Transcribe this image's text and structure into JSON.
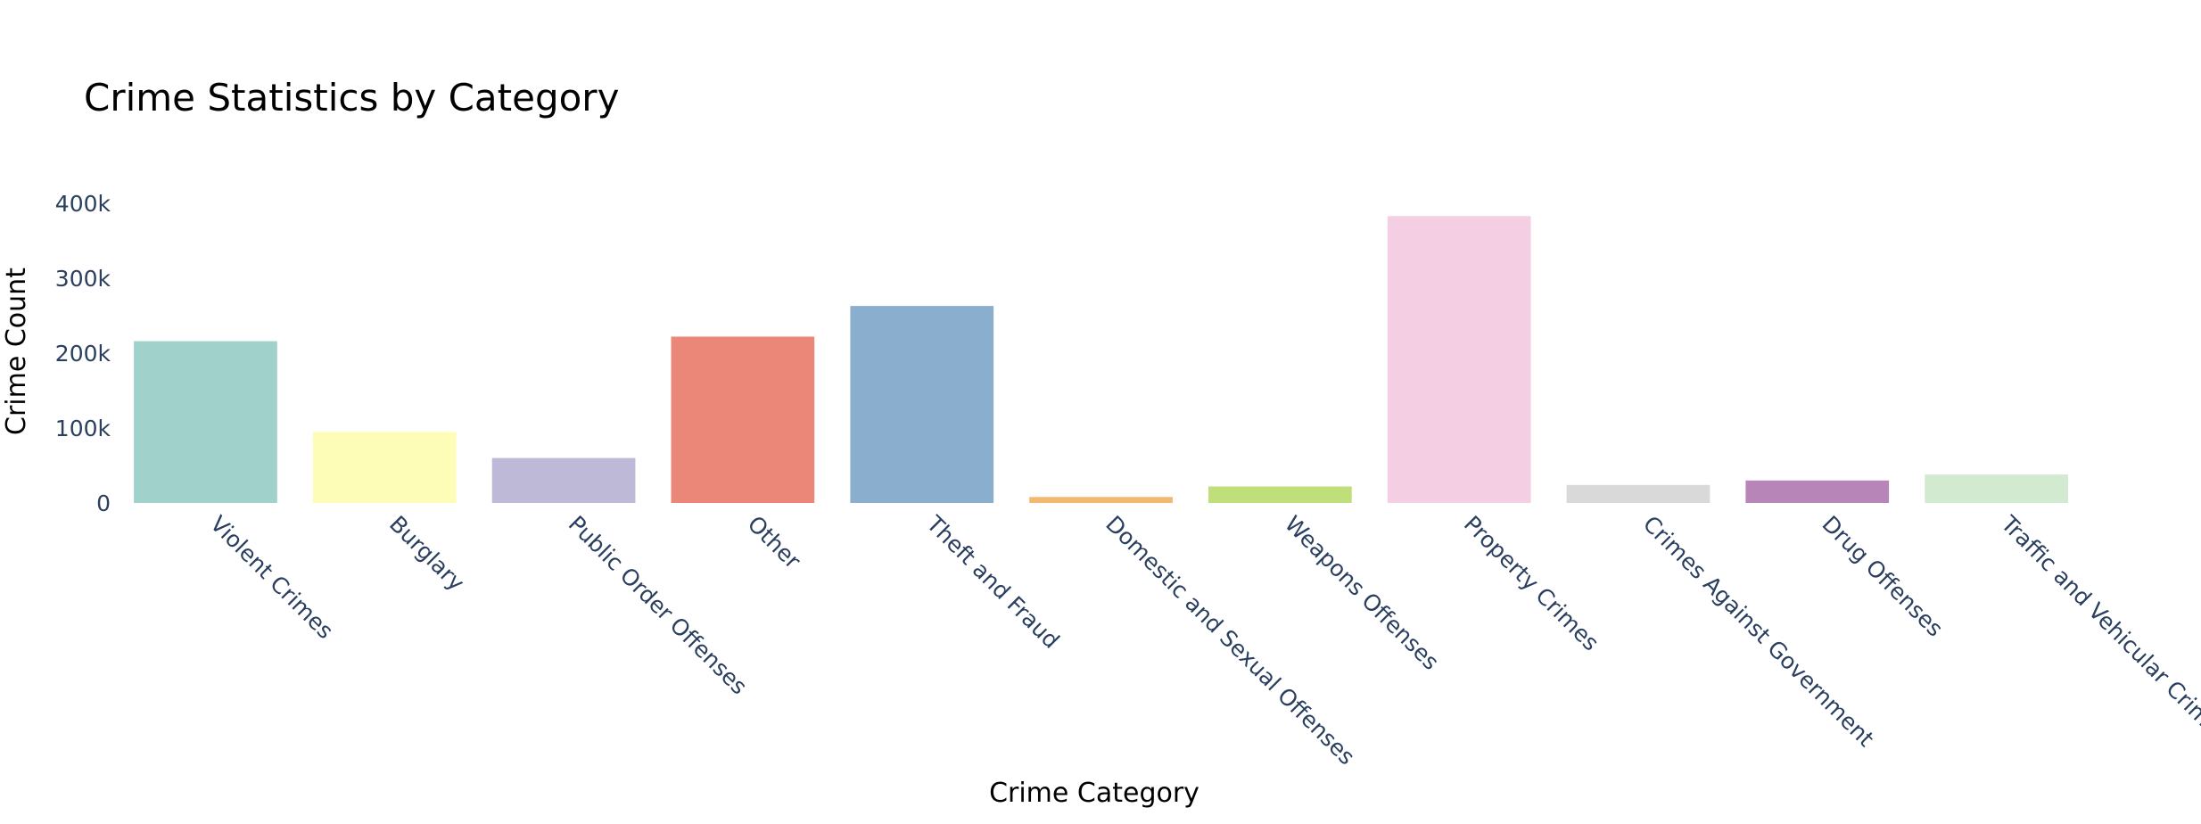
{
  "chart_data": {
    "type": "bar",
    "title": "Crime Statistics by Category",
    "xlabel": "Crime Category",
    "ylabel": "Crime Count",
    "categories": [
      "Violent Crimes",
      "Burglary",
      "Public Order Offenses",
      "Other",
      "Theft and Fraud",
      "Domestic and Sexual Offenses",
      "Weapons Offenses",
      "Property Crimes",
      "Crimes Against Government",
      "Drug Offenses",
      "Traffic and Vehicular Crimes"
    ],
    "values": [
      216000,
      95000,
      60000,
      222000,
      263000,
      8000,
      22000,
      383000,
      24000,
      30000,
      38000
    ],
    "colors": [
      "#a0d2cb",
      "#fefdb8",
      "#beb9d6",
      "#ea8778",
      "#8aafce",
      "#f3b870",
      "#bfdf7b",
      "#f4cee3",
      "#d9d9d9",
      "#b885b9",
      "#d1ead0"
    ],
    "ylim": [
      0,
      420000
    ],
    "yticks": [
      {
        "value": 0,
        "label": "0"
      },
      {
        "value": 100000,
        "label": "100k"
      },
      {
        "value": 200000,
        "label": "200k"
      },
      {
        "value": 300000,
        "label": "300k"
      },
      {
        "value": 400000,
        "label": "400k"
      }
    ],
    "grid": false,
    "legend": "none"
  }
}
